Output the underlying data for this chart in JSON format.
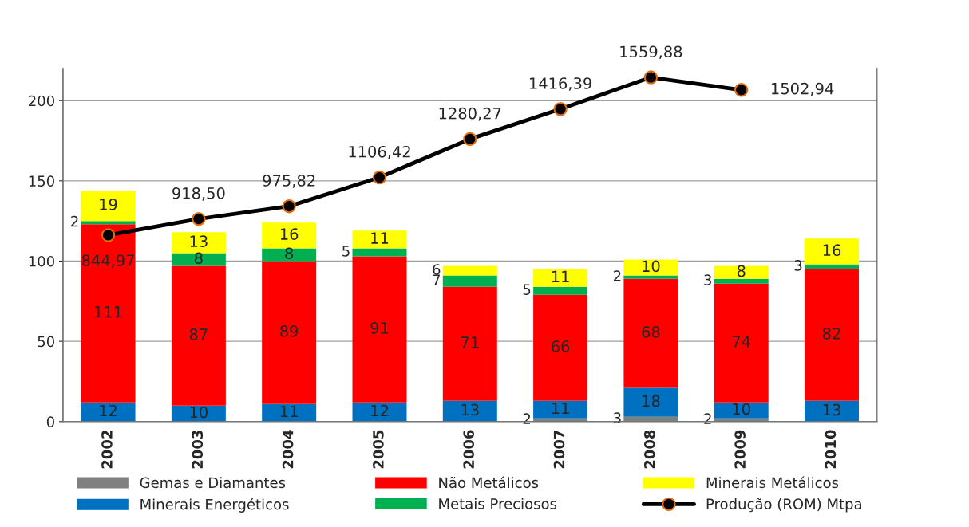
{
  "chart_data": {
    "type": "bar",
    "stacked": true,
    "categories": [
      "2002",
      "2003",
      "2004",
      "2005",
      "2006",
      "2007",
      "2008",
      "2009",
      "2010"
    ],
    "series": [
      {
        "name": "Gemas e Diamantes",
        "color": "#808080",
        "values": [
          null,
          null,
          null,
          null,
          null,
          2,
          3,
          2,
          null
        ]
      },
      {
        "name": "Minerais Energéticos",
        "color": "#0070c0",
        "values": [
          12,
          10,
          11,
          12,
          13,
          11,
          18,
          10,
          13
        ]
      },
      {
        "name": "Não Metálicos",
        "color": "#ff0000",
        "values": [
          111,
          87,
          89,
          91,
          71,
          66,
          68,
          74,
          82
        ]
      },
      {
        "name": "Metais Preciosos",
        "color": "#00b050",
        "values": [
          2,
          8,
          8,
          5,
          7,
          5,
          2,
          3,
          3
        ]
      },
      {
        "name": "Minerais Metálicos",
        "color": "#ffff00",
        "values": [
          19,
          13,
          16,
          11,
          6,
          11,
          10,
          8,
          16
        ]
      },
      {
        "name": "Produção (ROM) Mtpa",
        "type": "line",
        "axis": "y2",
        "color": "#000000",
        "marker": "circle",
        "values": [
          844.97,
          918.5,
          975.82,
          1106.42,
          1280.27,
          1416.39,
          1559.88,
          1502.94,
          null
        ],
        "value_labels": [
          "844,97",
          "918,50",
          "975,82",
          "1106,42",
          "1280,27",
          "1416,39",
          "1559,88",
          "1502,94",
          null
        ]
      }
    ],
    "data_labels": true,
    "ylim": [
      0,
      220
    ],
    "yticks": [
      0,
      50,
      100,
      150,
      200
    ],
    "y2lim": [
      0,
      1600
    ],
    "grid": "y",
    "legend": "bottom"
  }
}
